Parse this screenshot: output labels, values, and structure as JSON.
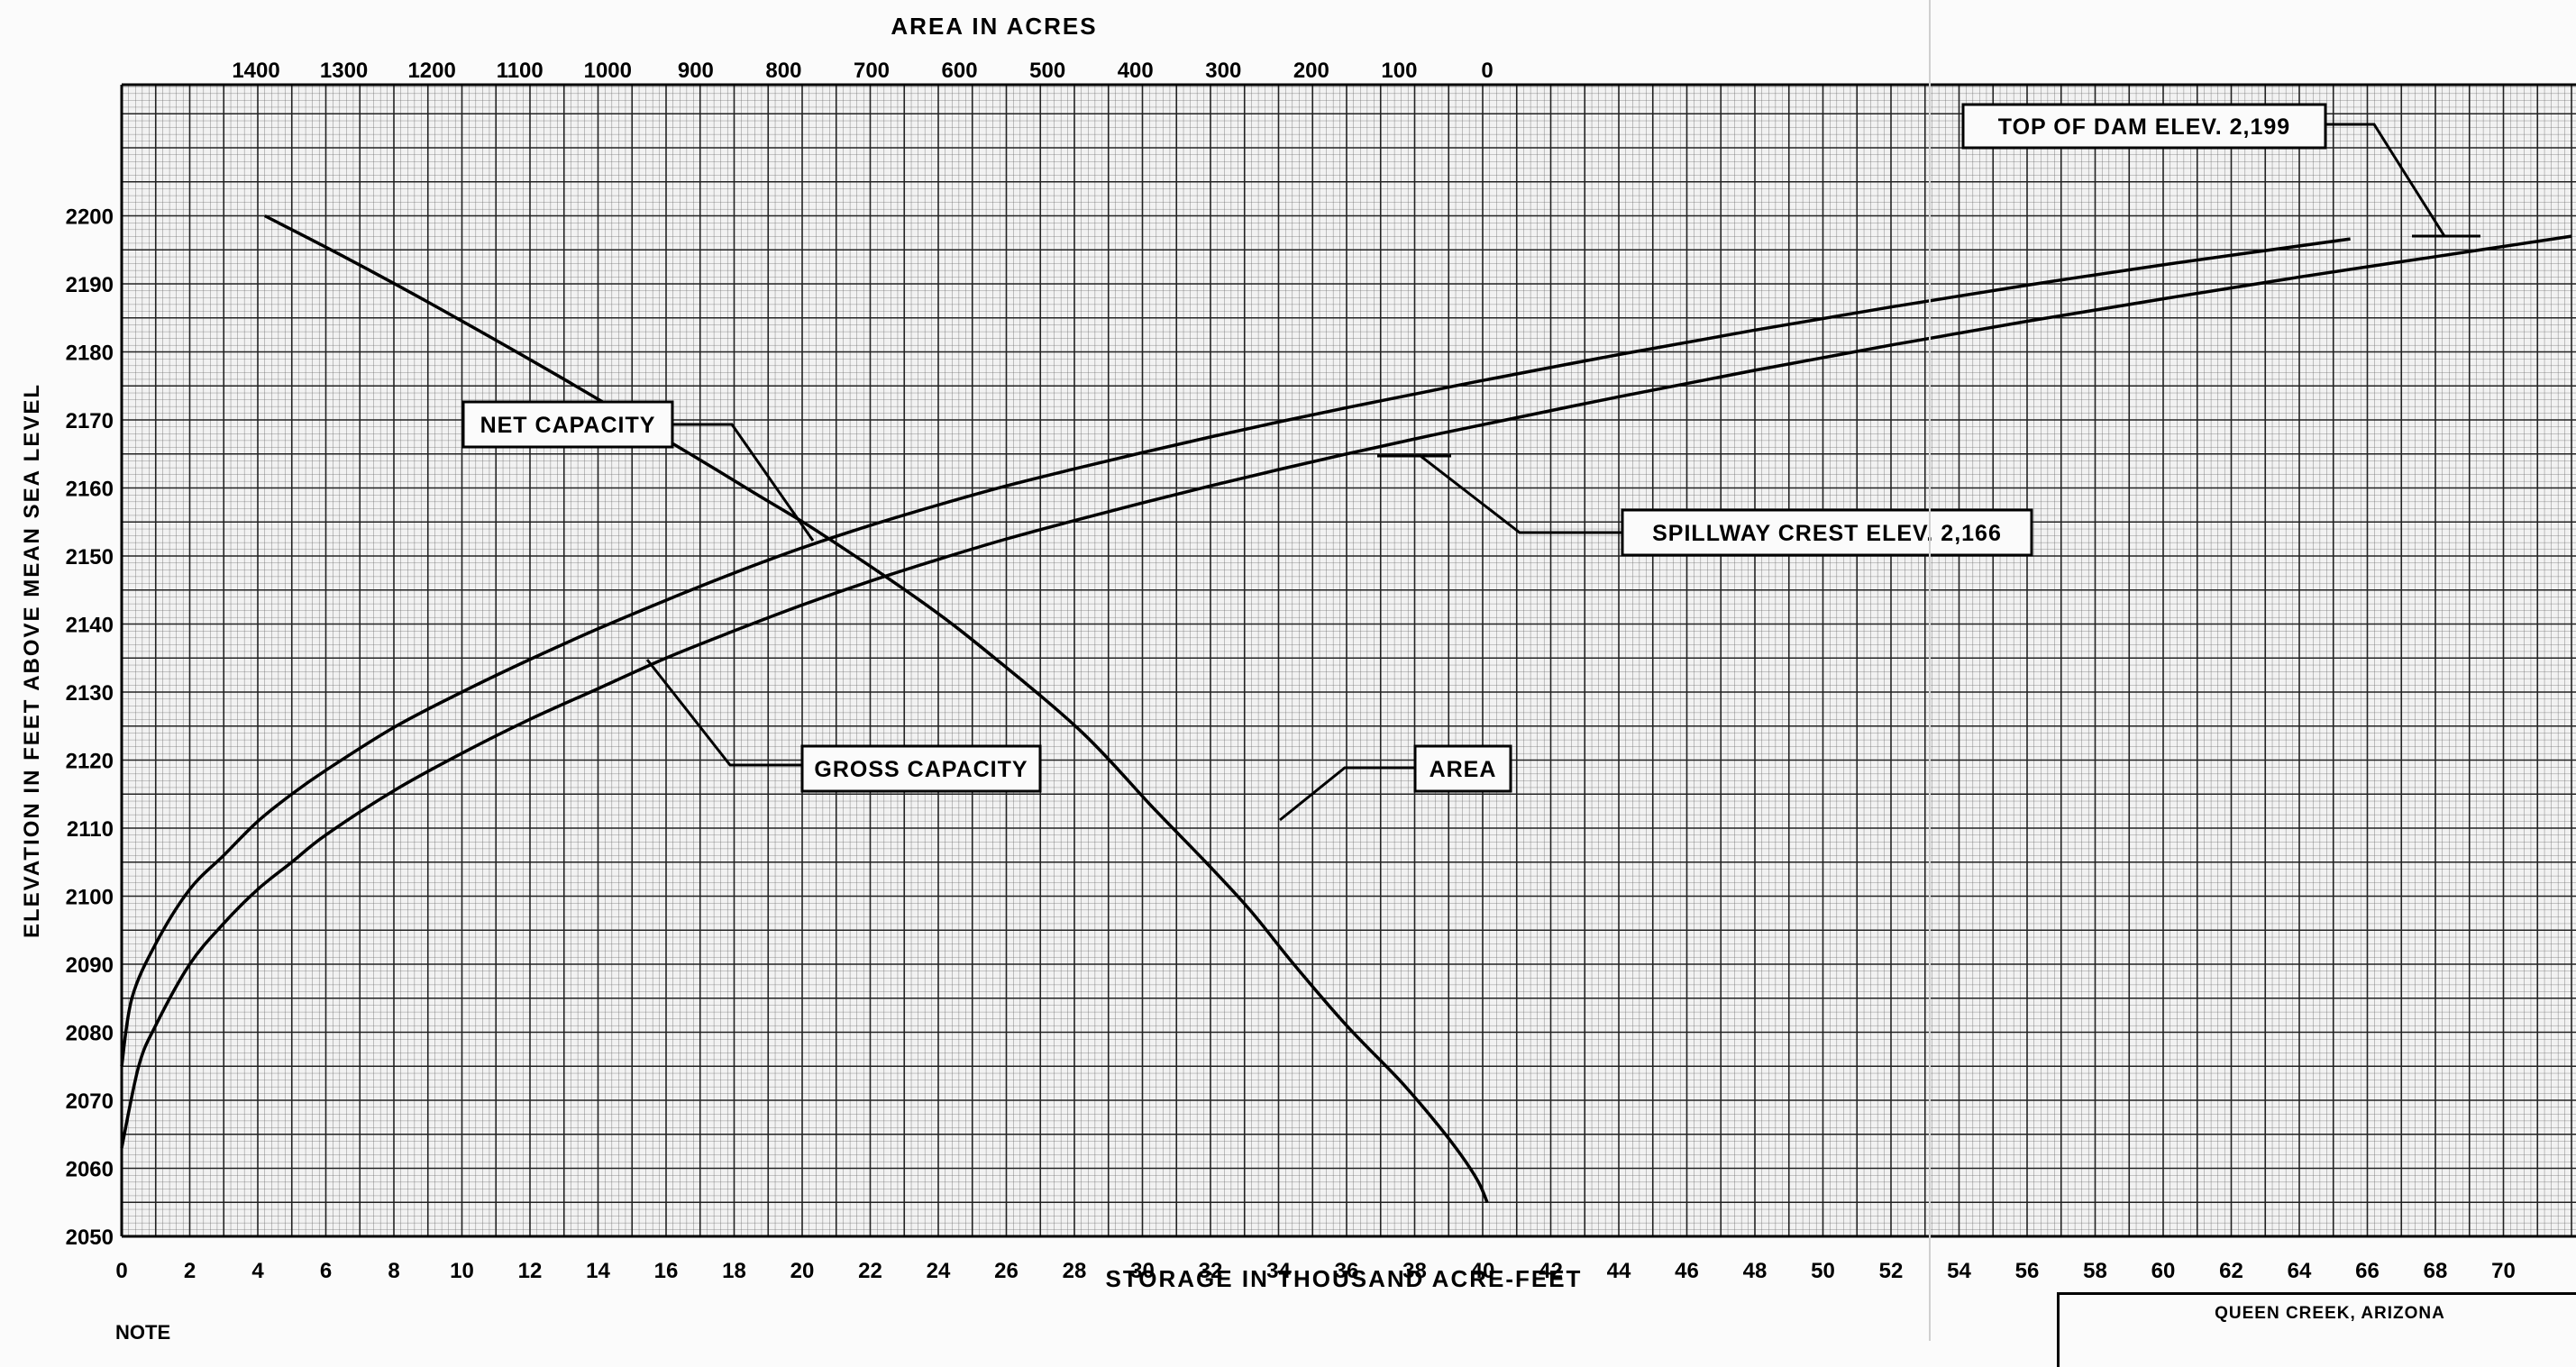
{
  "chart_data": {
    "type": "line",
    "title": "",
    "top_axis": {
      "label": "AREA IN ACRES",
      "ticks": [
        1400,
        1300,
        1200,
        1100,
        1000,
        900,
        800,
        700,
        600,
        500,
        400,
        300,
        200,
        100,
        0
      ],
      "tick_labels": [
        "1400",
        "1300",
        "1200",
        "1100",
        "1000",
        "900",
        "800",
        "700",
        "600",
        "500",
        "400",
        "300",
        "200",
        "100",
        "0"
      ]
    },
    "xlabel": "STORAGE IN THOUSAND ACRE-FEET",
    "ylabel": "ELEVATION IN FEET ABOVE MEAN SEA LEVEL",
    "xlim": [
      0,
      72
    ],
    "ylim": [
      2050,
      2220
    ],
    "x_ticks": [
      0,
      2,
      4,
      6,
      8,
      10,
      12,
      14,
      16,
      18,
      20,
      22,
      24,
      26,
      28,
      30,
      32,
      34,
      36,
      38,
      40,
      42,
      44,
      46,
      48,
      50,
      52,
      54,
      56,
      58,
      60,
      62,
      64,
      66,
      68,
      70
    ],
    "y_ticks": [
      2050,
      2060,
      2070,
      2080,
      2090,
      2100,
      2110,
      2120,
      2130,
      2140,
      2150,
      2160,
      2170,
      2180,
      2190,
      2200
    ],
    "grid": true,
    "series": [
      {
        "name": "NET CAPACITY",
        "x": [
          0,
          0.3,
          1,
          2,
          3,
          4,
          5,
          6,
          8,
          10,
          12,
          14,
          16,
          18,
          20,
          22,
          24,
          26,
          28,
          30,
          32,
          34,
          36,
          38,
          40,
          44,
          48,
          52,
          56,
          60,
          65.5
        ],
        "y": [
          2075,
          2085,
          2093,
          2101,
          2106,
          2111,
          2115,
          2118.5,
          2124.8,
          2130,
          2134.8,
          2139.3,
          2143.5,
          2147.5,
          2151.2,
          2154.5,
          2157.5,
          2160.3,
          2162.8,
          2165.2,
          2167.5,
          2169.7,
          2171.8,
          2173.8,
          2175.8,
          2179.6,
          2183.2,
          2186.6,
          2189.8,
          2192.8,
          2196.6
        ]
      },
      {
        "name": "GROSS CAPACITY",
        "x": [
          0,
          0.5,
          1,
          2,
          3,
          4,
          5,
          6,
          8,
          10,
          12,
          14,
          16,
          18,
          20,
          22,
          24,
          26,
          28,
          30,
          32,
          34,
          36,
          38,
          40,
          44,
          48,
          52,
          56,
          60,
          64,
          68,
          72
        ],
        "y": [
          2063,
          2075,
          2081,
          2090,
          2096,
          2101,
          2105,
          2109,
          2115.5,
          2121,
          2126,
          2130.5,
          2135,
          2139,
          2142.8,
          2146.3,
          2149.5,
          2152.5,
          2155.2,
          2157.8,
          2160.3,
          2162.7,
          2165,
          2167.2,
          2169.3,
          2173.4,
          2177.3,
          2181,
          2184.5,
          2187.8,
          2191,
          2194,
          2197
        ]
      },
      {
        "name": "AREA",
        "area_acres": [
          1390,
          1300,
          1200,
          1050,
          900,
          830,
          760,
          640,
          560,
          460,
          380,
          320,
          270,
          220,
          160,
          100,
          60,
          30,
          10,
          0
        ],
        "y": [
          2200,
          2194,
          2187,
          2176,
          2164.5,
          2159,
          2153.5,
          2143,
          2135,
          2124,
          2113,
          2105,
          2098,
          2090,
          2081,
          2073,
          2067,
          2062,
          2058,
          2055
        ]
      }
    ],
    "annotations": {
      "net_capacity": "NET CAPACITY",
      "gross_capacity": "GROSS CAPACITY",
      "area": "AREA",
      "spillway": "SPILLWAY CREST ELEV. 2,166",
      "top_of_dam": "TOP OF DAM ELEV. 2,199"
    },
    "reference_levels": {
      "spillway_crest": 2166,
      "top_of_dam": 2199
    }
  },
  "footer": {
    "note": "NOTE",
    "title_block": "QUEEN CREEK, ARIZONA"
  }
}
